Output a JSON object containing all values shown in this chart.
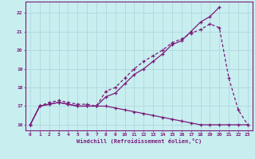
{
  "line1_x": [
    0,
    1,
    2,
    3,
    4,
    5,
    6,
    7,
    8,
    9,
    10,
    11,
    12,
    13,
    14,
    15,
    16,
    17,
    18,
    19,
    20
  ],
  "line1_y": [
    16,
    17,
    17.1,
    17.2,
    17.1,
    17.0,
    17.0,
    17.0,
    17.5,
    17.7,
    18.2,
    18.7,
    19.0,
    19.4,
    19.8,
    20.3,
    20.5,
    21.0,
    21.5,
    21.8,
    22.3
  ],
  "line2_x": [
    0,
    1,
    2,
    3,
    4,
    5,
    6,
    7,
    8,
    9,
    10,
    11,
    12,
    13,
    14,
    15,
    16,
    17,
    18,
    19,
    20,
    21,
    22,
    23
  ],
  "line2_y": [
    16,
    17,
    17.2,
    17.3,
    17.2,
    17.1,
    17.1,
    17.0,
    17.8,
    18.0,
    18.5,
    19.0,
    19.4,
    19.7,
    20.0,
    20.4,
    20.6,
    20.9,
    21.1,
    21.4,
    21.2,
    18.5,
    16.8,
    16.0
  ],
  "line3_x": [
    0,
    1,
    2,
    3,
    4,
    5,
    6,
    7,
    8,
    9,
    10,
    11,
    12,
    13,
    14,
    15,
    16,
    17,
    18,
    19,
    20,
    21,
    22,
    23
  ],
  "line3_y": [
    16,
    17,
    17.1,
    17.2,
    17.1,
    17.0,
    17.0,
    17.0,
    17.0,
    16.9,
    16.8,
    16.7,
    16.6,
    16.5,
    16.4,
    16.3,
    16.2,
    16.1,
    16.0,
    16.0,
    16.0,
    16.0,
    16.0,
    16.0
  ],
  "line_color": "#7b1a7b",
  "bg_color": "#c8eef0",
  "grid_color": "#aad4d8",
  "xlabel": "Windchill (Refroidissement éolien,°C)",
  "xlim": [
    -0.5,
    23.5
  ],
  "ylim": [
    15.7,
    22.6
  ],
  "yticks": [
    16,
    17,
    18,
    19,
    20,
    21,
    22
  ],
  "xticks": [
    0,
    1,
    2,
    3,
    4,
    5,
    6,
    7,
    8,
    9,
    10,
    11,
    12,
    13,
    14,
    15,
    16,
    17,
    18,
    19,
    20,
    21,
    22,
    23
  ]
}
